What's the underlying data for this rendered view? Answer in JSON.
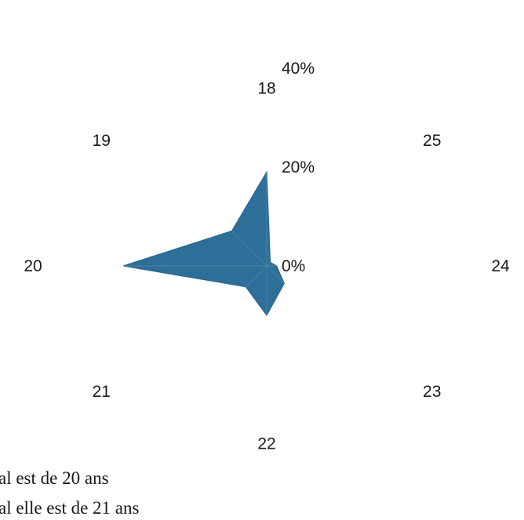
{
  "chart_data": {
    "type": "radar",
    "categories": [
      "18",
      "25",
      "24",
      "23",
      "22",
      "21",
      "20",
      "19"
    ],
    "series": [
      {
        "values": [
          19,
          1,
          2,
          5,
          10,
          6,
          29,
          10
        ]
      }
    ],
    "rlim": [
      0,
      40
    ],
    "ticks": [
      "0%",
      "20%",
      "40%"
    ],
    "tick_values": [
      0,
      20,
      40
    ],
    "fill_color": "#2d6f98",
    "edge_color": "#2a6790",
    "grid": false,
    "legend": "none"
  },
  "captions": [
    "al est de 20 ans",
    "al elle est de 21 ans"
  ]
}
